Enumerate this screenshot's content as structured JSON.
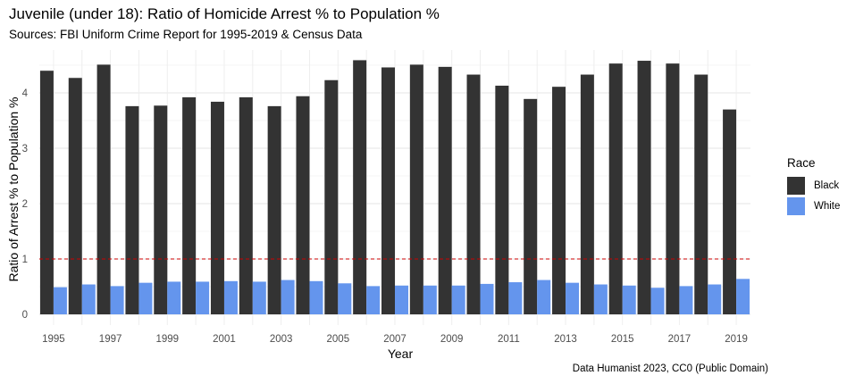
{
  "chart_data": {
    "type": "bar",
    "title": "Juvenile (under 18): Ratio of Homicide Arrest % to Population %",
    "subtitle": "Sources: FBI Uniform Crime Report for 1995-2019 & Census Data",
    "caption": "Data Humanist 2023, CC0 (Public Domain)",
    "xlabel": "Year",
    "ylabel": "Ratio of Arrest % to Population %",
    "categories": [
      1995,
      1996,
      1997,
      1998,
      1999,
      2000,
      2001,
      2002,
      2003,
      2004,
      2005,
      2006,
      2007,
      2008,
      2009,
      2010,
      2011,
      2012,
      2013,
      2014,
      2015,
      2016,
      2017,
      2018,
      2019
    ],
    "x_tick_labels": [
      "1995",
      "1997",
      "1999",
      "2001",
      "2003",
      "2005",
      "2007",
      "2009",
      "2011",
      "2013",
      "2015",
      "2017",
      "2019"
    ],
    "y_tick_labels": [
      "0",
      "1",
      "2",
      "3",
      "4"
    ],
    "ylim": [
      0,
      4.6
    ],
    "reference_line": {
      "y": 1,
      "style": "dashed",
      "color": "#cc0000"
    },
    "legend": {
      "title": "Race",
      "position": "right"
    },
    "grid": true,
    "series": [
      {
        "name": "Black",
        "color": "#333333",
        "values": [
          4.4,
          4.27,
          4.51,
          3.76,
          3.77,
          3.92,
          3.84,
          3.92,
          3.76,
          3.94,
          4.23,
          4.59,
          4.46,
          4.51,
          4.47,
          4.33,
          4.13,
          3.89,
          4.11,
          4.33,
          4.53,
          4.58,
          4.53,
          4.33,
          3.7
        ]
      },
      {
        "name": "White",
        "color": "#6495ED",
        "values": [
          0.49,
          0.54,
          0.51,
          0.57,
          0.59,
          0.59,
          0.6,
          0.59,
          0.62,
          0.6,
          0.56,
          0.51,
          0.52,
          0.52,
          0.52,
          0.55,
          0.58,
          0.62,
          0.57,
          0.54,
          0.52,
          0.48,
          0.51,
          0.54,
          0.64
        ]
      }
    ]
  }
}
